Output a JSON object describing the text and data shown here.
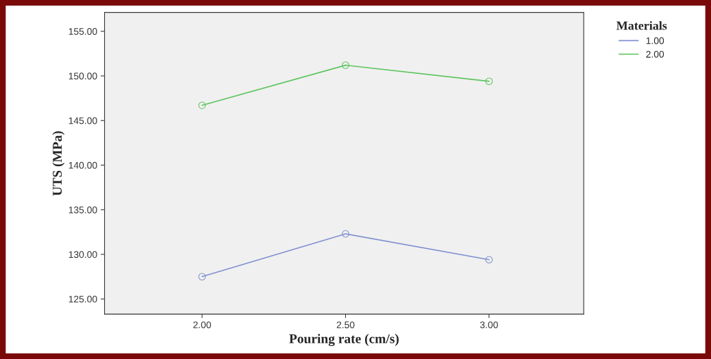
{
  "chart_data": {
    "type": "line",
    "xlabel": "Pouring rate (cm/s)",
    "ylabel": "UTS (MPa)",
    "legend_title": "Materials",
    "x": [
      2.0,
      2.5,
      3.0
    ],
    "series": [
      {
        "name": "1.00",
        "color": "#7f8fd0",
        "values": [
          127.5,
          132.3,
          129.4
        ]
      },
      {
        "name": "2.00",
        "color": "#5cc45c",
        "values": [
          146.7,
          151.2,
          149.4
        ]
      }
    ],
    "xlim": [
      1.66,
      3.33
    ],
    "xticks": [
      {
        "value": 2.0,
        "label": "2.00"
      },
      {
        "value": 2.5,
        "label": "2.50"
      },
      {
        "value": 3.0,
        "label": "3.00"
      }
    ],
    "ylim": [
      123.3,
      157.1
    ],
    "yticks": [
      {
        "value": 125,
        "label": "125.00"
      },
      {
        "value": 130,
        "label": "130.00"
      },
      {
        "value": 135,
        "label": "135.00"
      },
      {
        "value": 140,
        "label": "140.00"
      },
      {
        "value": 145,
        "label": "145.00"
      },
      {
        "value": 150,
        "label": "150.00"
      },
      {
        "value": 155,
        "label": "155.00"
      }
    ],
    "marker": "circle",
    "line_style": "solid",
    "grid": false,
    "legend": "top right"
  }
}
